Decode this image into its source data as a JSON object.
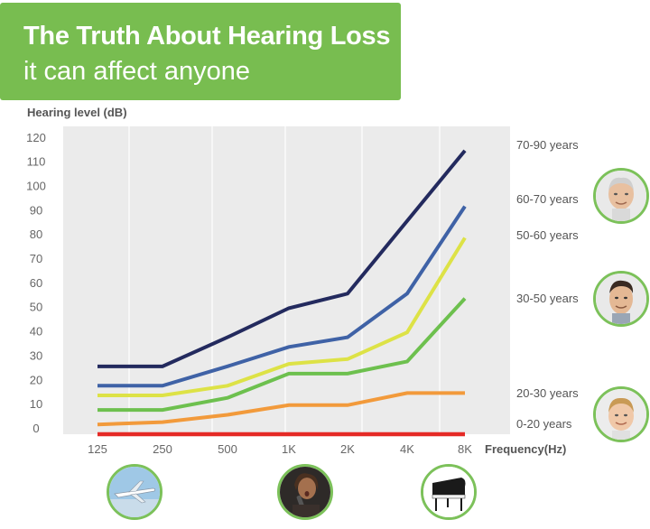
{
  "banner": {
    "title": "The Truth About Hearing Loss",
    "subtitle": "it can affect anyone"
  },
  "colors": {
    "banner": "#78bd50",
    "plot_background": "#ebebeb",
    "avatar_border": "#7cc15a"
  },
  "chart_data": {
    "type": "line",
    "title": "The Truth About Hearing Loss",
    "subtitle": "it can affect anyone",
    "ylabel": "Hearing level (dB)",
    "xlabel": "Frequency(Hz)",
    "x_ticks": [
      "125",
      "250",
      "500",
      "1K",
      "2K",
      "4K",
      "8K"
    ],
    "y_ticks": [
      0,
      10,
      20,
      30,
      40,
      50,
      60,
      70,
      80,
      90,
      100,
      110,
      120
    ],
    "ylim": [
      0,
      120
    ],
    "grid": true,
    "x": [
      125,
      250,
      500,
      1000,
      2000,
      4000,
      8000
    ],
    "series": [
      {
        "name": "70-90 years",
        "color": "#232a5e",
        "values": [
          28,
          28,
          40,
          52,
          58,
          88,
          117
        ]
      },
      {
        "name": "60-70 years",
        "color": "#3f62a6",
        "values": [
          20,
          20,
          28,
          36,
          40,
          58,
          94
        ]
      },
      {
        "name": "50-60 years",
        "color": "#dde246",
        "values": [
          16,
          16,
          20,
          29,
          31,
          42,
          81
        ]
      },
      {
        "name": "30-50 years",
        "color": "#6dc04e",
        "values": [
          10,
          10,
          15,
          25,
          25,
          30,
          56
        ]
      },
      {
        "name": "20-30 years",
        "color": "#f29a3b",
        "values": [
          4,
          5,
          8,
          12,
          12,
          17,
          17
        ]
      },
      {
        "name": "0-20 years",
        "color": "#e52a26",
        "values": [
          0,
          0,
          0,
          0,
          0,
          0,
          0
        ]
      }
    ]
  },
  "avatars": [
    {
      "name": "older-man-avatar",
      "series": "60-70 years"
    },
    {
      "name": "middle-aged-man-avatar",
      "series": "30-50 years"
    },
    {
      "name": "child-avatar",
      "series": "20-30 years"
    }
  ],
  "bottom_icons": [
    {
      "name": "airplane-icon"
    },
    {
      "name": "singer-icon"
    },
    {
      "name": "piano-icon"
    }
  ]
}
